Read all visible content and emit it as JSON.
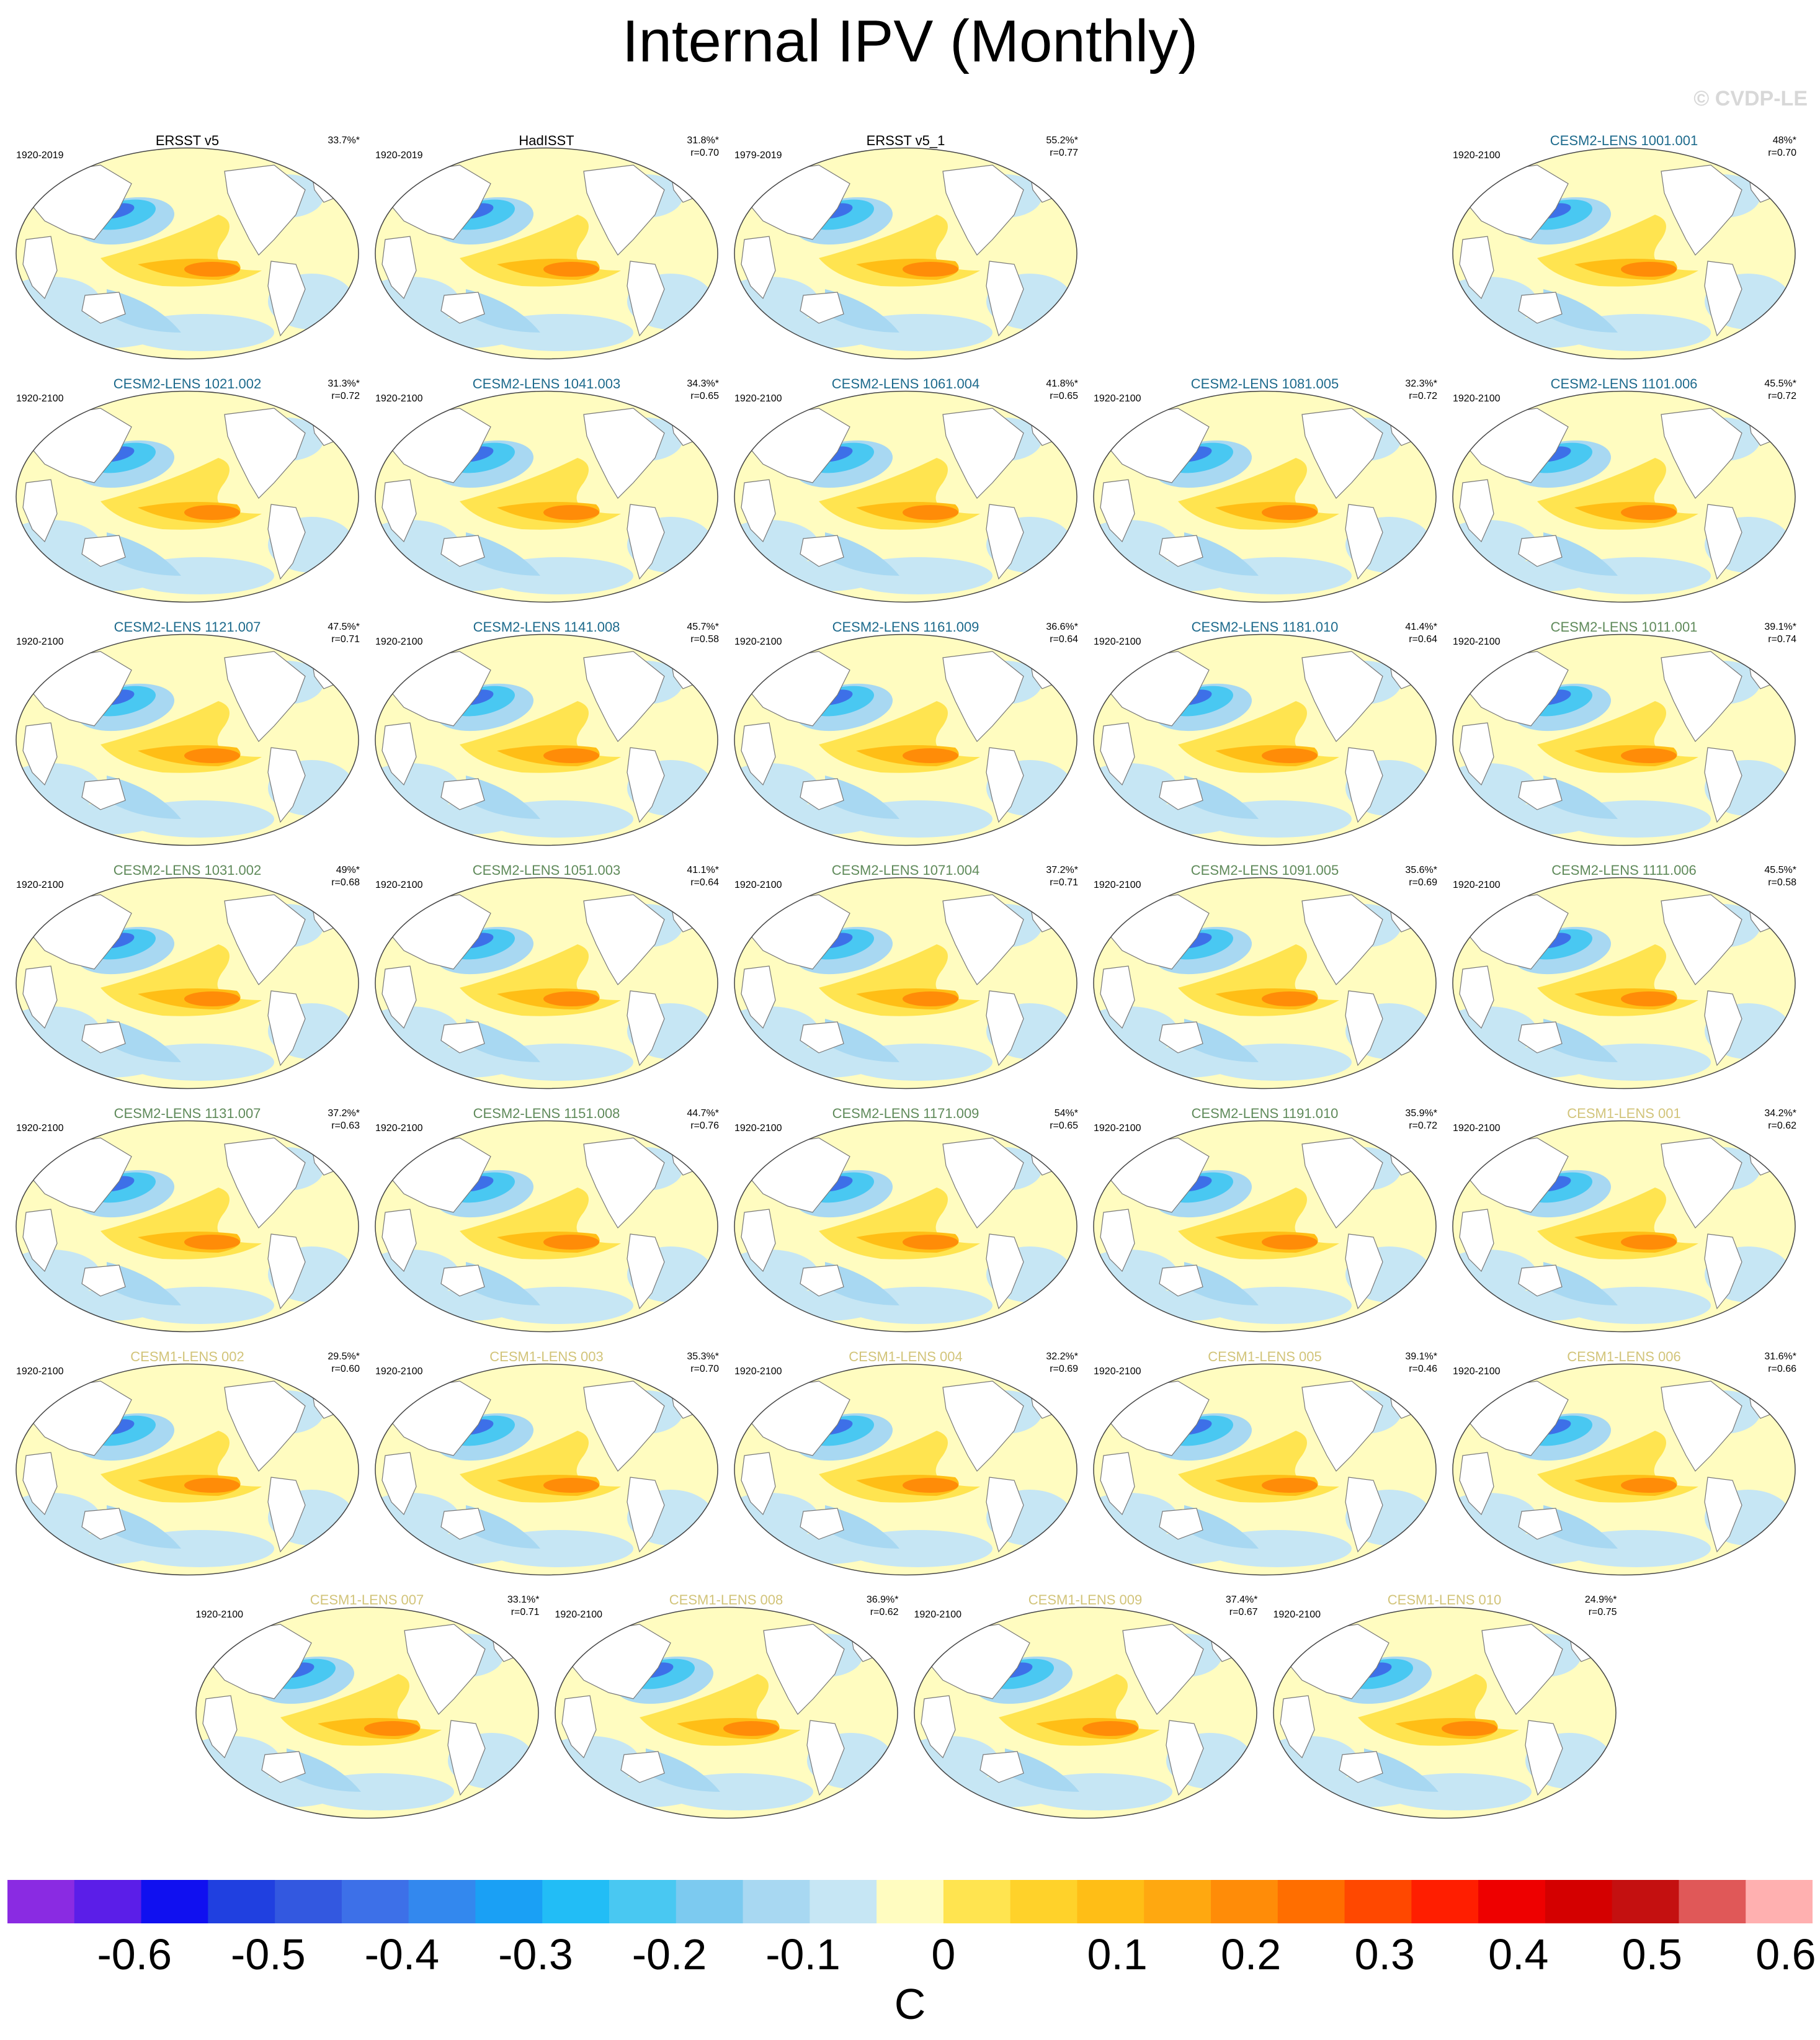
{
  "title": "Internal IPV (Monthly)",
  "copyright": "© CVDP-LE",
  "colors": {
    "obs_title": "#000000",
    "cesm2_cmip6_title": "#1d6a8c",
    "cesm2_smbb_title": "#5f8a5a",
    "cesm1_title": "#d2c47a"
  },
  "panels": [
    {
      "title": "ERSST v5",
      "group": "obs",
      "period": "1920-2019",
      "pct": "33.7%*",
      "r": "",
      "row": 0,
      "col": 0
    },
    {
      "title": "HadISST",
      "group": "obs",
      "period": "1920-2019",
      "pct": "31.8%*",
      "r": "r=0.70",
      "row": 0,
      "col": 1
    },
    {
      "title": "ERSST v5_1",
      "group": "obs",
      "period": "1979-2019",
      "pct": "55.2%*",
      "r": "r=0.77",
      "row": 0,
      "col": 2
    },
    {
      "title": "CESM2-LENS 1001.001",
      "group": "cesm2a",
      "period": "1920-2100",
      "pct": "48%*",
      "r": "r=0.70",
      "row": 0,
      "col": 4
    },
    {
      "title": "CESM2-LENS 1021.002",
      "group": "cesm2a",
      "period": "1920-2100",
      "pct": "31.3%*",
      "r": "r=0.72",
      "row": 1,
      "col": 0
    },
    {
      "title": "CESM2-LENS 1041.003",
      "group": "cesm2a",
      "period": "1920-2100",
      "pct": "34.3%*",
      "r": "r=0.65",
      "row": 1,
      "col": 1
    },
    {
      "title": "CESM2-LENS 1061.004",
      "group": "cesm2a",
      "period": "1920-2100",
      "pct": "41.8%*",
      "r": "r=0.65",
      "row": 1,
      "col": 2
    },
    {
      "title": "CESM2-LENS 1081.005",
      "group": "cesm2a",
      "period": "1920-2100",
      "pct": "32.3%*",
      "r": "r=0.72",
      "row": 1,
      "col": 3
    },
    {
      "title": "CESM2-LENS 1101.006",
      "group": "cesm2a",
      "period": "1920-2100",
      "pct": "45.5%*",
      "r": "r=0.72",
      "row": 1,
      "col": 4
    },
    {
      "title": "CESM2-LENS 1121.007",
      "group": "cesm2a",
      "period": "1920-2100",
      "pct": "47.5%*",
      "r": "r=0.71",
      "row": 2,
      "col": 0
    },
    {
      "title": "CESM2-LENS 1141.008",
      "group": "cesm2a",
      "period": "1920-2100",
      "pct": "45.7%*",
      "r": "r=0.58",
      "row": 2,
      "col": 1
    },
    {
      "title": "CESM2-LENS 1161.009",
      "group": "cesm2a",
      "period": "1920-2100",
      "pct": "36.6%*",
      "r": "r=0.64",
      "row": 2,
      "col": 2
    },
    {
      "title": "CESM2-LENS 1181.010",
      "group": "cesm2a",
      "period": "1920-2100",
      "pct": "41.4%*",
      "r": "r=0.64",
      "row": 2,
      "col": 3
    },
    {
      "title": "CESM2-LENS 1011.001",
      "group": "cesm2b",
      "period": "1920-2100",
      "pct": "39.1%*",
      "r": "r=0.74",
      "row": 2,
      "col": 4
    },
    {
      "title": "CESM2-LENS 1031.002",
      "group": "cesm2b",
      "period": "1920-2100",
      "pct": "49%*",
      "r": "r=0.68",
      "row": 3,
      "col": 0
    },
    {
      "title": "CESM2-LENS 1051.003",
      "group": "cesm2b",
      "period": "1920-2100",
      "pct": "41.1%*",
      "r": "r=0.64",
      "row": 3,
      "col": 1
    },
    {
      "title": "CESM2-LENS 1071.004",
      "group": "cesm2b",
      "period": "1920-2100",
      "pct": "37.2%*",
      "r": "r=0.71",
      "row": 3,
      "col": 2
    },
    {
      "title": "CESM2-LENS 1091.005",
      "group": "cesm2b",
      "period": "1920-2100",
      "pct": "35.6%*",
      "r": "r=0.69",
      "row": 3,
      "col": 3
    },
    {
      "title": "CESM2-LENS 1111.006",
      "group": "cesm2b",
      "period": "1920-2100",
      "pct": "45.5%*",
      "r": "r=0.58",
      "row": 3,
      "col": 4
    },
    {
      "title": "CESM2-LENS 1131.007",
      "group": "cesm2b",
      "period": "1920-2100",
      "pct": "37.2%*",
      "r": "r=0.63",
      "row": 4,
      "col": 0
    },
    {
      "title": "CESM2-LENS 1151.008",
      "group": "cesm2b",
      "period": "1920-2100",
      "pct": "44.7%*",
      "r": "r=0.76",
      "row": 4,
      "col": 1
    },
    {
      "title": "CESM2-LENS 1171.009",
      "group": "cesm2b",
      "period": "1920-2100",
      "pct": "54%*",
      "r": "r=0.65",
      "row": 4,
      "col": 2
    },
    {
      "title": "CESM2-LENS 1191.010",
      "group": "cesm2b",
      "period": "1920-2100",
      "pct": "35.9%*",
      "r": "r=0.72",
      "row": 4,
      "col": 3
    },
    {
      "title": "CESM1-LENS 001",
      "group": "cesm1",
      "period": "1920-2100",
      "pct": "34.2%*",
      "r": "r=0.62",
      "row": 4,
      "col": 4
    },
    {
      "title": "CESM1-LENS 002",
      "group": "cesm1",
      "period": "1920-2100",
      "pct": "29.5%*",
      "r": "r=0.60",
      "row": 5,
      "col": 0
    },
    {
      "title": "CESM1-LENS 003",
      "group": "cesm1",
      "period": "1920-2100",
      "pct": "35.3%*",
      "r": "r=0.70",
      "row": 5,
      "col": 1
    },
    {
      "title": "CESM1-LENS 004",
      "group": "cesm1",
      "period": "1920-2100",
      "pct": "32.2%*",
      "r": "r=0.69",
      "row": 5,
      "col": 2
    },
    {
      "title": "CESM1-LENS 005",
      "group": "cesm1",
      "period": "1920-2100",
      "pct": "39.1%*",
      "r": "r=0.46",
      "row": 5,
      "col": 3
    },
    {
      "title": "CESM1-LENS 006",
      "group": "cesm1",
      "period": "1920-2100",
      "pct": "31.6%*",
      "r": "r=0.66",
      "row": 5,
      "col": 4
    },
    {
      "title": "CESM1-LENS 007",
      "group": "cesm1",
      "period": "1920-2100",
      "pct": "33.1%*",
      "r": "r=0.71",
      "row": 6,
      "col": 0.5
    },
    {
      "title": "CESM1-LENS 008",
      "group": "cesm1",
      "period": "1920-2100",
      "pct": "36.9%*",
      "r": "r=0.62",
      "row": 6,
      "col": 1.5
    },
    {
      "title": "CESM1-LENS 009",
      "group": "cesm1",
      "period": "1920-2100",
      "pct": "37.4%*",
      "r": "r=0.67",
      "row": 6,
      "col": 2.5
    },
    {
      "title": "CESM1-LENS 010",
      "group": "cesm1",
      "period": "1920-2100",
      "pct": "24.9%*",
      "r": "r=0.75",
      "row": 6,
      "col": 3.5
    }
  ],
  "colorbar": {
    "units": "C",
    "colors": [
      "#8a2be2",
      "#5b1ee8",
      "#1010f0",
      "#2040e0",
      "#3358e0",
      "#3d70e8",
      "#3388ee",
      "#1aa0f5",
      "#22bdf6",
      "#49c8f2",
      "#7ccaf0",
      "#a8d8f2",
      "#c6e6f4",
      "#fffcc0",
      "#ffe450",
      "#ffd22a",
      "#ffbe16",
      "#ffa810",
      "#ff8c08",
      "#ff6e00",
      "#ff4800",
      "#ff1e00",
      "#ee0000",
      "#d40000",
      "#c41010",
      "#e05858",
      "#ffb0b0"
    ],
    "tick_labels": [
      "-0.6",
      "-0.5",
      "-0.4",
      "-0.3",
      "-0.2",
      "-0.1",
      "0",
      "0.1",
      "0.2",
      "0.3",
      "0.4",
      "0.5",
      "0.6"
    ]
  }
}
